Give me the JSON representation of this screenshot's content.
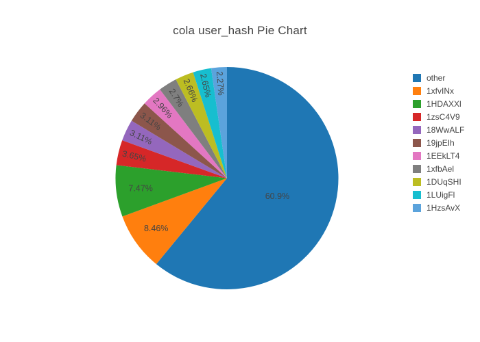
{
  "title": "cola user_hash Pie Chart",
  "background_color": "#ffffff",
  "text_color": "#444444",
  "chart_data": {
    "type": "pie",
    "title": "cola user_hash Pie Chart",
    "legend_position": "right",
    "direction": "clockwise",
    "start_angle_deg": 0,
    "labels": [
      "other",
      "1xfvINx",
      "1HDAXXl",
      "1zsC4V9",
      "18WwALF",
      "19jpEIh",
      "1EEkLT4",
      "1xfbAel",
      "1DUqSHI",
      "1LUigFl",
      "1HzsAvX"
    ],
    "values": [
      60.9,
      8.46,
      7.47,
      3.65,
      3.11,
      3.11,
      2.96,
      2.7,
      2.66,
      2.65,
      2.27
    ],
    "percent_labels": [
      "60.9%",
      "8.46%",
      "7.47%",
      "3.65%",
      "3.11%",
      "3.11%",
      "2.96%",
      "2.7%",
      "2.66%",
      "2.65%",
      "2.27%"
    ],
    "colors": [
      "#1f77b4",
      "#ff7f0e",
      "#2ca02c",
      "#d62728",
      "#9467bd",
      "#8c564b",
      "#e377c2",
      "#7f7f7f",
      "#bcbd22",
      "#17becf",
      "#5ba3dc"
    ],
    "label_text_color": "#444444"
  }
}
